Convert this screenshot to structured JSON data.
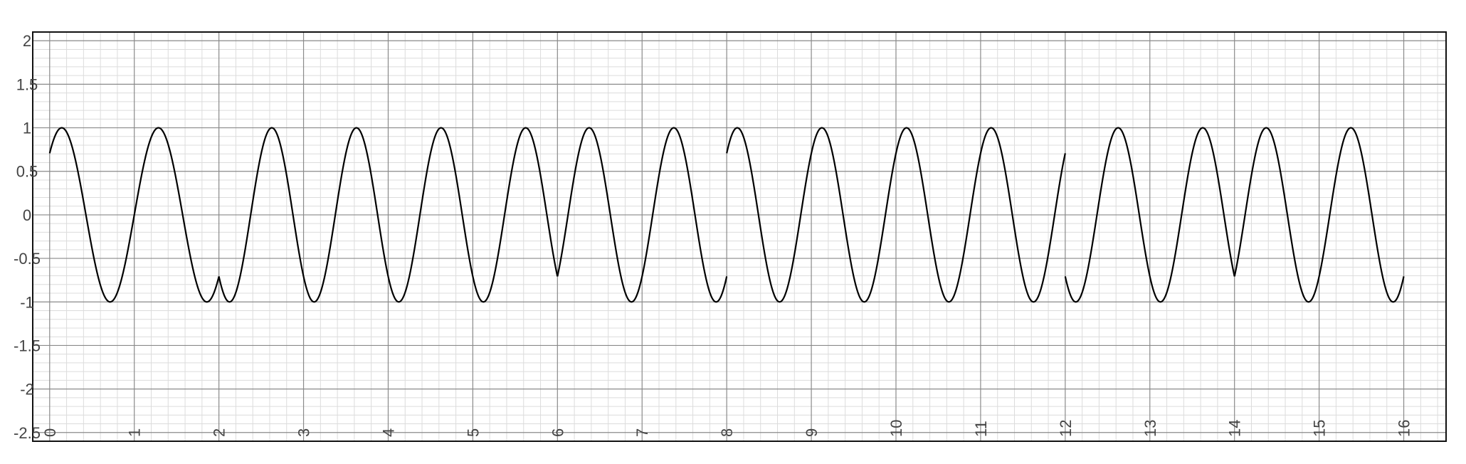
{
  "chart_data": {
    "type": "line",
    "title": "",
    "xlabel": "",
    "ylabel": "",
    "xlim": [
      -0.2,
      16.5
    ],
    "ylim": [
      -2.6,
      2.1
    ],
    "x_ticks": [
      0,
      1,
      2,
      3,
      4,
      5,
      6,
      7,
      8,
      9,
      10,
      11,
      12,
      13,
      14,
      15,
      16
    ],
    "x_tick_labels": [
      "0",
      "1",
      "2",
      "3",
      "4",
      "5",
      "6",
      "7",
      "8",
      "9",
      "10",
      "11",
      "12",
      "13",
      "14",
      "15",
      "16"
    ],
    "y_ticks": [
      2,
      1.5,
      1,
      0.5,
      0,
      -0.5,
      -1,
      -1.5,
      -2,
      -2.5
    ],
    "y_tick_labels": [
      "2",
      "1.5",
      "1",
      "0.5",
      "0",
      "-0.5",
      "-1",
      "-1.5",
      "-2",
      "-2.5"
    ],
    "grid": true,
    "minor_grid": true,
    "legend": "none",
    "line_color": "#000000",
    "series": [
      {
        "segments": [
          {
            "x_range": [
              0,
              2
            ],
            "phase_start": 0.7854,
            "cycles": 1.75,
            "direction": 1
          },
          {
            "x_range": [
              2,
              6
            ],
            "phase_start": -0.7854,
            "cycles": 4.0,
            "direction": -1
          },
          {
            "x_range": [
              6,
              8
            ],
            "phase_start": -0.7854,
            "cycles": 2.0,
            "direction": 1
          },
          {
            "x_range": [
              8,
              12
            ],
            "phase_start": 0.7854,
            "cycles": 4.0,
            "direction": 1
          },
          {
            "x_range": [
              12,
              14
            ],
            "phase_start": -0.7854,
            "cycles": 2.0,
            "direction": -1
          },
          {
            "x_range": [
              14,
              16
            ],
            "phase_start": -0.7854,
            "cycles": 2.0,
            "direction": 1
          }
        ]
      }
    ]
  }
}
